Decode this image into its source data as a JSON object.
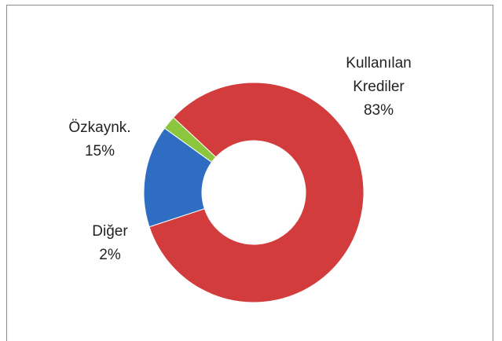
{
  "chart_data": {
    "type": "donut",
    "categories": [
      "Kullanılan Krediler",
      "Özkaynk.",
      "Diğer"
    ],
    "values": [
      83,
      15,
      2
    ],
    "value_labels": [
      "83%",
      "15%",
      "2%"
    ],
    "colors": [
      "#d23c3c",
      "#2e6dc2",
      "#8cc63e"
    ]
  }
}
